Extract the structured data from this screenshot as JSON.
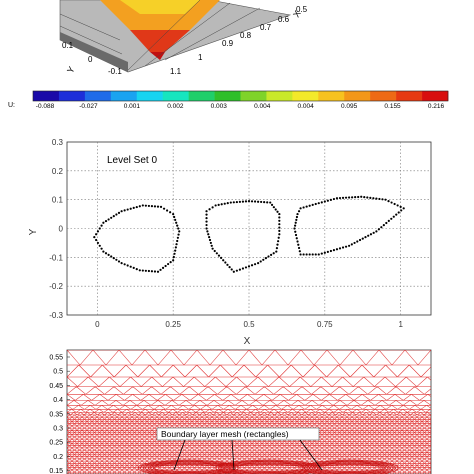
{
  "panel_top": {
    "axis_labels": {
      "x": "X",
      "y": "Y"
    },
    "x_ticks": [
      "0.5",
      "0.6",
      "0.7",
      "0.8",
      "0.9",
      "1",
      "1.1"
    ],
    "y_ticks": [
      "0.1",
      "0",
      "-0.1"
    ]
  },
  "colorbar": {
    "label": "U:",
    "ticks": [
      "-0.088",
      "-0.027",
      "0.001",
      "0.002",
      "0.003",
      "0.004",
      "0.004",
      "0.095",
      "0.155",
      "0.216"
    ],
    "colors": [
      "#1a0aa8",
      "#1d2fd9",
      "#1f6be8",
      "#1aa3f0",
      "#17d4f0",
      "#17e5bf",
      "#1fcf6a",
      "#2fbf2a",
      "#7fd32a",
      "#c9e82a",
      "#f3e92a",
      "#f7c21f",
      "#f39719",
      "#ee6a16",
      "#e63a12",
      "#d80e0e"
    ]
  },
  "chart_data": {
    "type": "scatter",
    "title": "Level Set 0",
    "xlabel": "X",
    "ylabel": "Y",
    "xlim": [
      -0.1,
      1.1
    ],
    "ylim": [
      -0.3,
      0.3
    ],
    "x_ticks": [
      "0",
      "0.25",
      "0.5",
      "0.75",
      "1"
    ],
    "y_ticks": [
      "0.3",
      "0.2",
      "0.1",
      "0",
      "-0.1",
      "-0.2",
      "-0.3"
    ],
    "grid": true,
    "series": [
      {
        "x": [
          0.27,
          0.25,
          0.2,
          0.14,
          0.08,
          0.02,
          -0.01,
          0.02,
          0.08,
          0.15,
          0.21,
          0.25,
          0.27
        ],
        "y": [
          -0.01,
          -0.11,
          -0.15,
          -0.145,
          -0.12,
          -0.08,
          -0.03,
          0.02,
          0.06,
          0.08,
          0.075,
          0.05,
          -0.01
        ]
      },
      {
        "x": [
          0.36,
          0.36,
          0.38,
          0.45,
          0.53,
          0.59,
          0.6,
          0.6,
          0.57,
          0.5,
          0.44,
          0.39,
          0.36
        ],
        "y": [
          0.06,
          0.0,
          -0.07,
          -0.15,
          -0.12,
          -0.08,
          -0.02,
          0.05,
          0.09,
          0.095,
          0.09,
          0.08,
          0.06
        ]
      },
      {
        "x": [
          0.66,
          0.65,
          0.67,
          0.73,
          0.83,
          0.92,
          1.01,
          0.95,
          0.87,
          0.79,
          0.72,
          0.67,
          0.66
        ],
        "y": [
          0.05,
          0.0,
          -0.09,
          -0.09,
          -0.06,
          -0.01,
          0.07,
          0.1,
          0.11,
          0.105,
          0.085,
          0.07,
          0.05
        ]
      }
    ]
  },
  "panel_bottom": {
    "y_ticks": [
      "0.55",
      "0.5",
      "0.45",
      "0.4",
      "0.35",
      "0.3",
      "0.25",
      "0.2",
      "0.15"
    ],
    "annotation": "Boundary layer mesh (rectangles)"
  }
}
